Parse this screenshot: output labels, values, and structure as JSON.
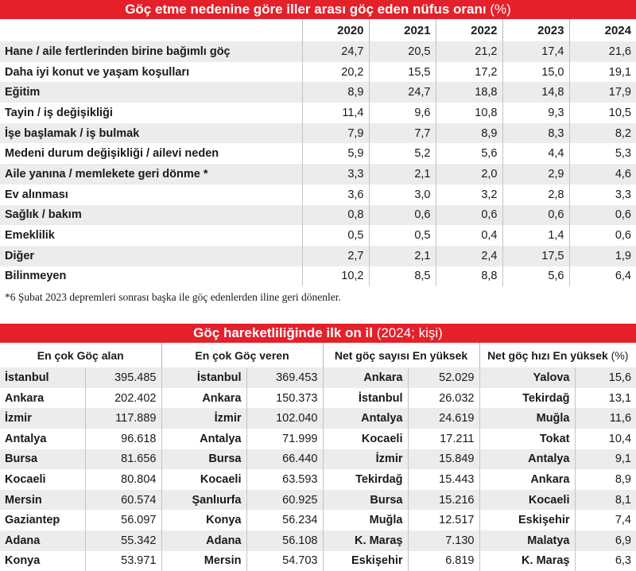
{
  "colors": {
    "banner": "#e4202a",
    "stripe": "#ececec"
  },
  "chart_data": [
    {
      "type": "table",
      "title": "Göç etme nedenine göre iller arası göç eden nüfus oranı",
      "unit": "(%)",
      "columns": [
        "2020",
        "2021",
        "2022",
        "2023",
        "2024"
      ],
      "rows": [
        {
          "label": "Hane / aile fertlerinden birine bağımlı göç",
          "values": [
            "24,7",
            "20,5",
            "21,2",
            "17,4",
            "21,6"
          ]
        },
        {
          "label": "Daha iyi konut ve yaşam koşulları",
          "values": [
            "20,2",
            "15,5",
            "17,2",
            "15,0",
            "19,1"
          ]
        },
        {
          "label": "Eğitim",
          "values": [
            "8,9",
            "24,7",
            "18,8",
            "14,8",
            "17,9"
          ]
        },
        {
          "label": "Tayin / iş değişikliği",
          "values": [
            "11,4",
            "9,6",
            "10,8",
            "9,3",
            "10,5"
          ]
        },
        {
          "label": "İşe başlamak / iş bulmak",
          "values": [
            "7,9",
            "7,7",
            "8,9",
            "8,3",
            "8,2"
          ]
        },
        {
          "label": "Medeni durum değişikliği / ailevi neden",
          "values": [
            "5,9",
            "5,2",
            "5,6",
            "4,4",
            "5,3"
          ]
        },
        {
          "label": "Aile yanına / memlekete geri dönme *",
          "values": [
            "3,3",
            "2,1",
            "2,0",
            "2,9",
            "4,6"
          ]
        },
        {
          "label": "Ev alınması",
          "values": [
            "3,6",
            "3,0",
            "3,2",
            "2,8",
            "3,3"
          ]
        },
        {
          "label": "Sağlık / bakım",
          "values": [
            "0,8",
            "0,6",
            "0,6",
            "0,6",
            "0,6"
          ]
        },
        {
          "label": "Emeklilik",
          "values": [
            "0,5",
            "0,5",
            "0,4",
            "1,4",
            "0,6"
          ]
        },
        {
          "label": "Diğer",
          "values": [
            "2,7",
            "2,1",
            "2,4",
            "17,5",
            "1,9"
          ]
        },
        {
          "label": "Bilinmeyen",
          "values": [
            "10,2",
            "8,5",
            "8,8",
            "5,6",
            "6,4"
          ]
        }
      ],
      "footnote": "*6 Şubat 2023 depremleri sonrası başka ile göç edenlerden iline geri dönenler."
    },
    {
      "type": "table",
      "title": "Göç hareketliliğinde ilk on il",
      "unit": "(2024; kişi)",
      "groups": [
        {
          "header": "En çok Göç alan",
          "header_suffix": "",
          "rows": [
            [
              "İstanbul",
              "395.485"
            ],
            [
              "Ankara",
              "202.402"
            ],
            [
              "İzmir",
              "117.889"
            ],
            [
              "Antalya",
              "96.618"
            ],
            [
              "Bursa",
              "81.656"
            ],
            [
              "Kocaeli",
              "80.804"
            ],
            [
              "Mersin",
              "60.574"
            ],
            [
              "Gaziantep",
              "56.097"
            ],
            [
              "Adana",
              "55.342"
            ],
            [
              "Konya",
              "53.971"
            ]
          ]
        },
        {
          "header": "En çok Göç veren",
          "header_suffix": "",
          "rows": [
            [
              "İstanbul",
              "369.453"
            ],
            [
              "Ankara",
              "150.373"
            ],
            [
              "İzmir",
              "102.040"
            ],
            [
              "Antalya",
              "71.999"
            ],
            [
              "Bursa",
              "66.440"
            ],
            [
              "Kocaeli",
              "63.593"
            ],
            [
              "Şanlıurfa",
              "60.925"
            ],
            [
              "Konya",
              "56.234"
            ],
            [
              "Adana",
              "56.108"
            ],
            [
              "Mersin",
              "54.703"
            ]
          ]
        },
        {
          "header": "Net göç sayısı En yüksek",
          "header_suffix": "",
          "rows": [
            [
              "Ankara",
              "52.029"
            ],
            [
              "İstanbul",
              "26.032"
            ],
            [
              "Antalya",
              "24.619"
            ],
            [
              "Kocaeli",
              "17.211"
            ],
            [
              "İzmir",
              "15.849"
            ],
            [
              "Tekirdağ",
              "15.443"
            ],
            [
              "Bursa",
              "15.216"
            ],
            [
              "Muğla",
              "12.517"
            ],
            [
              "K. Maraş",
              "7.130"
            ],
            [
              "Eskişehir",
              "6.819"
            ]
          ]
        },
        {
          "header": "Net göç hızı En yüksek",
          "header_suffix": "(%)",
          "rows": [
            [
              "Yalova",
              "15,6"
            ],
            [
              "Tekirdağ",
              "13,1"
            ],
            [
              "Muğla",
              "11,6"
            ],
            [
              "Tokat",
              "10,4"
            ],
            [
              "Antalya",
              "9,1"
            ],
            [
              "Ankara",
              "8,9"
            ],
            [
              "Kocaeli",
              "8,1"
            ],
            [
              "Eskişehir",
              "7,4"
            ],
            [
              "Malatya",
              "6,9"
            ],
            [
              "K. Maraş",
              "6,3"
            ]
          ]
        }
      ]
    }
  ]
}
